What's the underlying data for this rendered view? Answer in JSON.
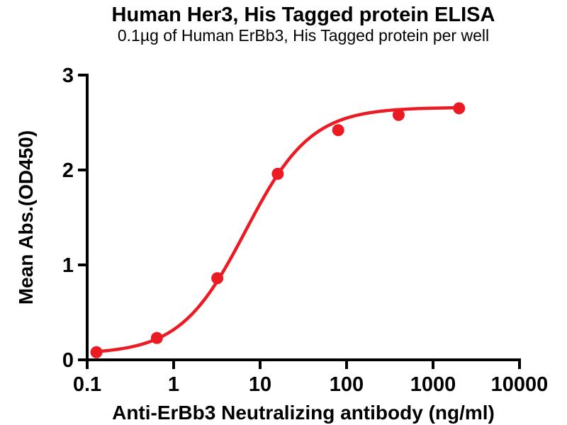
{
  "figure": {
    "background": "#ffffff",
    "axis_color": "#000000",
    "accent_red": "#ec1b23"
  },
  "chart_data": {
    "type": "scatter",
    "title": "Human Her3, His Tagged protein ELISA",
    "subtitle": "0.1µg of Human ErBb3, His Tagged protein per well",
    "xlabel": "Anti-ErBb3 Neutralizing antibody (ng/ml)",
    "ylabel": "Mean Abs.(OD450)",
    "x_scale": "log10",
    "xlim": [
      0.1,
      10000
    ],
    "ylim": [
      0,
      3
    ],
    "x_ticks": [
      0.1,
      1,
      10,
      100,
      1000,
      10000
    ],
    "x_tick_labels": [
      "0.1",
      "1",
      "10",
      "100",
      "1000",
      "10000"
    ],
    "y_ticks": [
      0,
      1,
      2,
      3
    ],
    "y_tick_labels": [
      "0",
      "1",
      "2",
      "3"
    ],
    "grid": false,
    "legend": null,
    "series": [
      {
        "name": "Anti-ErBb3 Neutralizing antibody",
        "x": [
          0.128,
          0.64,
          3.2,
          16,
          80,
          400,
          2000
        ],
        "y": [
          0.08,
          0.23,
          0.86,
          1.96,
          2.42,
          2.58,
          2.65
        ],
        "marker": "circle",
        "marker_color": "#ec1b23",
        "line_color": "#ec1b23",
        "fit_curve": {
          "type": "4PL",
          "bottom": 0.06,
          "top": 2.66,
          "ec50": 6.8,
          "hill": 1.15
        }
      }
    ]
  }
}
